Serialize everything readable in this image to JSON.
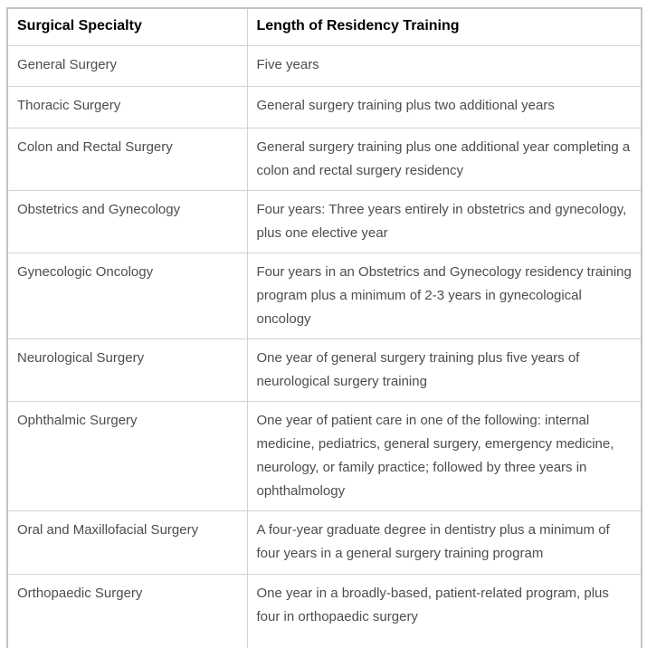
{
  "table": {
    "columns": [
      "Surgical Specialty",
      "Length of Residency Training"
    ],
    "rows": [
      {
        "specialty": "General Surgery",
        "length": "Five years"
      },
      {
        "specialty": "Thoracic Surgery",
        "length": "General surgery training plus two additional years"
      },
      {
        "specialty": "Colon and Rectal Surgery",
        "length": "General surgery training plus one additional year completing a colon and rectal surgery residency"
      },
      {
        "specialty": "Obstetrics and Gynecology",
        "length": "Four years: Three years entirely in obstetrics and gynecology, plus one elective year"
      },
      {
        "specialty": "Gynecologic Oncology",
        "length": "Four years in an Obstetrics and Gynecology residency training program plus a minimum of 2-3 years in gynecological oncology"
      },
      {
        "specialty": "Neurological Surgery",
        "length": "One year of general surgery training plus five years of neurological surgery training"
      },
      {
        "specialty": "Ophthalmic Surgery",
        "length": "One year of patient care in one of the following: internal medicine, pediatrics, general surgery, emergency medicine, neurology, or family practice; followed by three years in ophthalmology"
      },
      {
        "specialty": "Oral and Maxillofacial Surgery",
        "length": "A four-year graduate degree in dentistry plus a minimum of four years in a general surgery training program"
      },
      {
        "specialty": "Orthopaedic Surgery",
        "length": "One year in a broadly-based, patient-related program, plus four in orthopaedic surgery"
      }
    ]
  },
  "colors": {
    "background": "#ffffff",
    "header_text": "#000000",
    "body_text": "#4d4d4d",
    "border_outer": "#c3c3c3",
    "border_inner": "#d2d2d2"
  }
}
